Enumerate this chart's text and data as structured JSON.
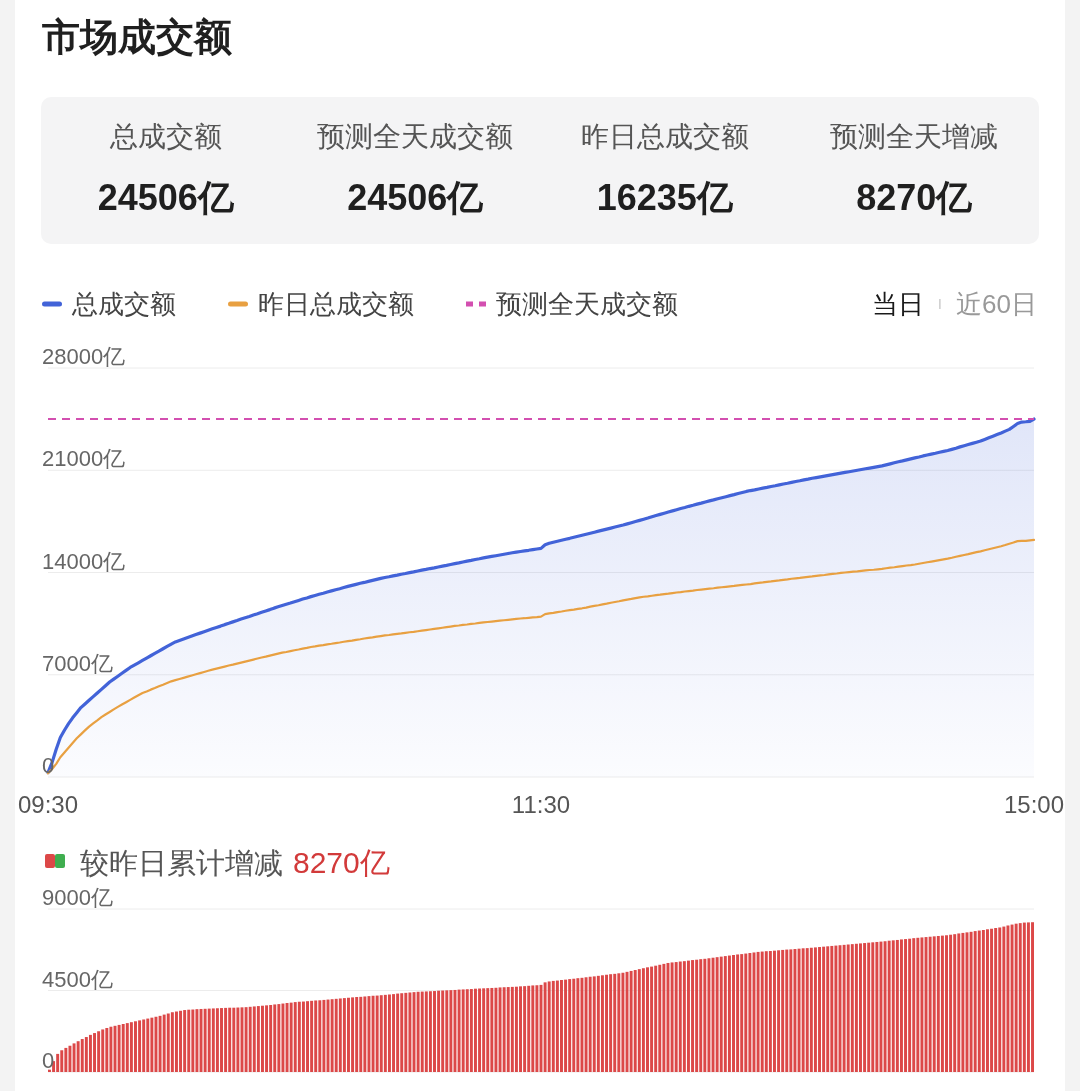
{
  "chart_data": [
    {
      "type": "other",
      "title": "市场成交额",
      "annotations": [
        "总成交额",
        "24506亿",
        "预测全天成交额",
        "24506亿",
        "昨日总成交额",
        "16235亿",
        "预测全天增减",
        "8270亿"
      ]
    },
    {
      "type": "line",
      "legend": "top left",
      "grid": "y",
      "ylim": [
        0,
        28000
      ],
      "yticks": [
        0,
        {
          "value": 7000,
          "label": "7000亿"
        },
        {
          "value": 14000,
          "label": "14000亿"
        },
        {
          "value": 21000,
          "label": "21000亿"
        },
        {
          "value": 28000,
          "label": "28000亿"
        }
      ],
      "annotations": [
        "当日",
        "近60日"
      ],
      "categories": [
        "09:30",
        null,
        null,
        null,
        null,
        null,
        null,
        null,
        null,
        null,
        null,
        null,
        null,
        null,
        null,
        null,
        null,
        null,
        null,
        null,
        null,
        null,
        null,
        null,
        null,
        null,
        null,
        null,
        null,
        null,
        null,
        null,
        null,
        null,
        null,
        null,
        null,
        null,
        null,
        null,
        null,
        null,
        null,
        null,
        null,
        null,
        null,
        null,
        null,
        null,
        null,
        null,
        null,
        null,
        null,
        null,
        null,
        null,
        null,
        null,
        null,
        null,
        null,
        null,
        null,
        null,
        null,
        null,
        null,
        null,
        null,
        null,
        null,
        null,
        null,
        null,
        null,
        null,
        null,
        null,
        null,
        null,
        null,
        null,
        null,
        null,
        null,
        null,
        null,
        null,
        null,
        null,
        null,
        null,
        null,
        null,
        null,
        null,
        null,
        null,
        null,
        null,
        null,
        null,
        null,
        null,
        null,
        null,
        null,
        null,
        null,
        null,
        null,
        null,
        null,
        null,
        null,
        null,
        null,
        null,
        "11:30",
        null,
        null,
        null,
        null,
        null,
        null,
        null,
        null,
        null,
        null,
        null,
        null,
        null,
        null,
        null,
        null,
        null,
        null,
        null,
        null,
        null,
        null,
        null,
        null,
        null,
        null,
        null,
        null,
        null,
        null,
        null,
        null,
        null,
        null,
        null,
        null,
        null,
        null,
        null,
        null,
        null,
        null,
        null,
        null,
        null,
        null,
        null,
        null,
        null,
        null,
        null,
        null,
        null,
        null,
        null,
        null,
        null,
        null,
        null,
        null,
        null,
        null,
        null,
        null,
        null,
        null,
        null,
        null,
        null,
        null,
        null,
        null,
        null,
        null,
        null,
        null,
        null,
        null,
        null,
        null,
        null,
        null,
        null,
        null,
        null,
        null,
        null,
        null,
        null,
        null,
        null,
        null,
        null,
        null,
        null,
        null,
        null,
        null,
        null,
        null,
        null,
        null,
        null,
        null,
        null,
        null,
        null,
        null,
        null,
        null,
        null,
        null,
        null,
        null,
        null,
        null,
        null,
        null,
        null,
        "15:00"
      ],
      "series": [
        {
          "name": "总成交额",
          "type": "area",
          "color": "#4263d8",
          "values": [
            300,
            1000,
            1900,
            2700,
            3200,
            3650,
            4050,
            4400,
            4750,
            5000,
            5250,
            5500,
            5750,
            6000,
            6250,
            6500,
            6700,
            6900,
            7100,
            7300,
            7500,
            7660,
            7820,
            7980,
            8140,
            8300,
            8460,
            8620,
            8780,
            8940,
            9100,
            9250,
            9350,
            9450,
            9550,
            9650,
            9750,
            9850,
            9950,
            10050,
            10150,
            10240,
            10330,
            10430,
            10520,
            10620,
            10710,
            10810,
            10900,
            10990,
            11090,
            11180,
            11280,
            11370,
            11460,
            11560,
            11650,
            11740,
            11830,
            11910,
            12000,
            12090,
            12180,
            12260,
            12350,
            12430,
            12510,
            12580,
            12660,
            12740,
            12820,
            12890,
            12970,
            13050,
            13120,
            13190,
            13260,
            13320,
            13390,
            13460,
            13530,
            13600,
            13660,
            13710,
            13770,
            13820,
            13880,
            13930,
            13990,
            14040,
            14100,
            14160,
            14210,
            14270,
            14320,
            14380,
            14440,
            14490,
            14550,
            14610,
            14660,
            14720,
            14780,
            14830,
            14890,
            14940,
            15000,
            15050,
            15100,
            15150,
            15200,
            15250,
            15300,
            15350,
            15400,
            15440,
            15480,
            15520,
            15570,
            15610,
            15650,
            15900,
            16000,
            16070,
            16140,
            16210,
            16280,
            16340,
            16410,
            16480,
            16550,
            16620,
            16690,
            16760,
            16830,
            16900,
            16970,
            17040,
            17110,
            17180,
            17250,
            17330,
            17410,
            17490,
            17570,
            17650,
            17730,
            17820,
            17900,
            17980,
            18060,
            18140,
            18220,
            18300,
            18380,
            18450,
            18530,
            18600,
            18680,
            18750,
            18830,
            18900,
            18970,
            19050,
            19120,
            19190,
            19260,
            19330,
            19410,
            19480,
            19550,
            19610,
            19660,
            19720,
            19780,
            19830,
            19890,
            19940,
            20000,
            20060,
            20110,
            20170,
            20230,
            20280,
            20340,
            20390,
            20450,
            20500,
            20550,
            20600,
            20650,
            20700,
            20750,
            20800,
            20850,
            20900,
            20950,
            21000,
            21050,
            21100,
            21150,
            21200,
            21250,
            21300,
            21370,
            21440,
            21510,
            21580,
            21640,
            21710,
            21780,
            21850,
            21910,
            21980,
            22040,
            22100,
            22160,
            22230,
            22290,
            22350,
            22430,
            22510,
            22600,
            22680,
            22760,
            22840,
            22920,
            23000,
            23110,
            23220,
            23330,
            23440,
            23550,
            23680,
            23800,
            24000,
            24200,
            24300,
            24320,
            24350,
            24506
          ]
        },
        {
          "name": "昨日总成交额",
          "type": "line",
          "color": "#e8a041",
          "values": [
            250,
            550,
            900,
            1350,
            1680,
            2000,
            2330,
            2650,
            2920,
            3190,
            3450,
            3670,
            3880,
            4100,
            4280,
            4450,
            4630,
            4800,
            4960,
            5120,
            5280,
            5440,
            5600,
            5750,
            5860,
            5980,
            6090,
            6210,
            6320,
            6440,
            6550,
            6630,
            6710,
            6790,
            6870,
            6950,
            7030,
            7110,
            7190,
            7270,
            7350,
            7420,
            7490,
            7560,
            7630,
            7690,
            7760,
            7830,
            7900,
            7970,
            8040,
            8110,
            8180,
            8240,
            8310,
            8380,
            8450,
            8510,
            8560,
            8620,
            8680,
            8730,
            8790,
            8840,
            8900,
            8940,
            8990,
            9030,
            9080,
            9120,
            9170,
            9210,
            9260,
            9300,
            9340,
            9390,
            9430,
            9480,
            9520,
            9560,
            9610,
            9650,
            9690,
            9720,
            9760,
            9800,
            9830,
            9870,
            9910,
            9940,
            9980,
            10020,
            10060,
            10100,
            10140,
            10180,
            10220,
            10260,
            10300,
            10340,
            10370,
            10410,
            10440,
            10480,
            10510,
            10550,
            10580,
            10610,
            10640,
            10670,
            10700,
            10730,
            10760,
            10790,
            10820,
            10850,
            10870,
            10900,
            10930,
            10950,
            10980,
            11150,
            11200,
            11240,
            11290,
            11330,
            11380,
            11420,
            11460,
            11510,
            11550,
            11600,
            11660,
            11710,
            11760,
            11820,
            11870,
            11930,
            11980,
            12030,
            12090,
            12140,
            12190,
            12250,
            12300,
            12340,
            12370,
            12410,
            12450,
            12480,
            12520,
            12550,
            12590,
            12630,
            12660,
            12700,
            12730,
            12760,
            12800,
            12830,
            12860,
            12890,
            12920,
            12960,
            12990,
            13020,
            13050,
            13080,
            13120,
            13150,
            13180,
            13210,
            13250,
            13290,
            13320,
            13360,
            13390,
            13430,
            13460,
            13500,
            13530,
            13570,
            13600,
            13630,
            13670,
            13700,
            13730,
            13770,
            13800,
            13830,
            13870,
            13900,
            13930,
            13970,
            14000,
            14030,
            14060,
            14080,
            14110,
            14140,
            14170,
            14190,
            14220,
            14250,
            14290,
            14330,
            14360,
            14400,
            14440,
            14480,
            14510,
            14550,
            14600,
            14650,
            14700,
            14750,
            14800,
            14850,
            14900,
            14950,
            15010,
            15080,
            15140,
            15200,
            15260,
            15330,
            15390,
            15450,
            15520,
            15590,
            15660,
            15730,
            15800,
            15880,
            15970,
            16050,
            16150,
            16160,
            16170,
            16200,
            16235
          ]
        }
      ],
      "ref_lines": [
        {
          "axis": "y",
          "value": 24506,
          "label": "预测全天成交额",
          "color": "#d34fb0",
          "line_style": "dashed"
        }
      ]
    },
    {
      "type": "bar",
      "title": "较昨日累计增减",
      "annotations": [
        "8270亿"
      ],
      "grid": "y",
      "color": "#dc4848",
      "ylim": [
        0,
        9000
      ],
      "yticks": [
        0,
        {
          "value": 4500,
          "label": "4500亿"
        },
        {
          "value": 9000,
          "label": "9000亿"
        }
      ],
      "categories": [
        null,
        null,
        null,
        null,
        null,
        null,
        null,
        null,
        null,
        null,
        null,
        null,
        null,
        null,
        null,
        null,
        null,
        null,
        null,
        null,
        null,
        null,
        null,
        null,
        null,
        null,
        null,
        null,
        null,
        null,
        null,
        null,
        null,
        null,
        null,
        null,
        null,
        null,
        null,
        null,
        null,
        null,
        null,
        null,
        null,
        null,
        null,
        null,
        null,
        null,
        null,
        null,
        null,
        null,
        null,
        null,
        null,
        null,
        null,
        null,
        null,
        null,
        null,
        null,
        null,
        null,
        null,
        null,
        null,
        null,
        null,
        null,
        null,
        null,
        null,
        null,
        null,
        null,
        null,
        null,
        null,
        null,
        null,
        null,
        null,
        null,
        null,
        null,
        null,
        null,
        null,
        null,
        null,
        null,
        null,
        null,
        null,
        null,
        null,
        null,
        null,
        null,
        null,
        null,
        null,
        null,
        null,
        null,
        null,
        null,
        null,
        null,
        null,
        null,
        null,
        null,
        null,
        null,
        null,
        null,
        null,
        null,
        null,
        null,
        null,
        null,
        null,
        null,
        null,
        null,
        null,
        null,
        null,
        null,
        null,
        null,
        null,
        null,
        null,
        null,
        null,
        null,
        null,
        null,
        null,
        null,
        null,
        null,
        null,
        null,
        null,
        null,
        null,
        null,
        null,
        null,
        null,
        null,
        null,
        null,
        null,
        null,
        null,
        null,
        null,
        null,
        null,
        null,
        null,
        null,
        null,
        null,
        null,
        null,
        null,
        null,
        null,
        null,
        null,
        null,
        null,
        null,
        null,
        null,
        null,
        null,
        null,
        null,
        null,
        null,
        null,
        null,
        null,
        null,
        null,
        null,
        null,
        null,
        null,
        null,
        null,
        null,
        null,
        null,
        null,
        null,
        null,
        null,
        null,
        null,
        null,
        null,
        null,
        null,
        null,
        null,
        null,
        null,
        null,
        null,
        null,
        null,
        null,
        null,
        null,
        null,
        null,
        null,
        null,
        null,
        null,
        null,
        null,
        null,
        null,
        null,
        null,
        null,
        null,
        null,
        null
      ],
      "values": [
        130,
        600,
        1000,
        1200,
        1330,
        1450,
        1580,
        1700,
        1820,
        1930,
        2050,
        2150,
        2250,
        2350,
        2430,
        2500,
        2550,
        2600,
        2650,
        2700,
        2750,
        2800,
        2850,
        2900,
        2950,
        3000,
        3050,
        3100,
        3170,
        3230,
        3300,
        3340,
        3380,
        3420,
        3440,
        3450,
        3470,
        3480,
        3490,
        3500,
        3510,
        3520,
        3530,
        3540,
        3550,
        3550,
        3560,
        3570,
        3580,
        3600,
        3620,
        3640,
        3660,
        3680,
        3700,
        3730,
        3750,
        3780,
        3810,
        3830,
        3860,
        3880,
        3890,
        3910,
        3930,
        3950,
        3960,
        3980,
        4000,
        4020,
        4040,
        4060,
        4080,
        4100,
        4120,
        4140,
        4150,
        4170,
        4190,
        4210,
        4220,
        4240,
        4260,
        4280,
        4300,
        4330,
        4350,
        4370,
        4390,
        4410,
        4430,
        4440,
        4450,
        4460,
        4470,
        4490,
        4500,
        4510,
        4520,
        4530,
        4550,
        4560,
        4570,
        4580,
        4600,
        4610,
        4620,
        4630,
        4640,
        4650,
        4670,
        4680,
        4690,
        4700,
        4710,
        4730,
        4740,
        4760,
        4780,
        4790,
        4810,
        4950,
        5000,
        5030,
        5050,
        5080,
        5100,
        5130,
        5150,
        5180,
        5200,
        5230,
        5260,
        5280,
        5310,
        5340,
        5370,
        5400,
        5420,
        5450,
        5480,
        5530,
        5580,
        5630,
        5680,
        5730,
        5780,
        5820,
        5870,
        5920,
        5970,
        6020,
        6050,
        6070,
        6100,
        6120,
        6150,
        6180,
        6200,
        6230,
        6250,
        6280,
        6310,
        6340,
        6370,
        6400,
        6430,
        6460,
        6490,
        6510,
        6540,
        6570,
        6600,
        6630,
        6650,
        6670,
        6680,
        6700,
        6720,
        6740,
        6760,
        6770,
        6790,
        6810,
        6830,
        6840,
        6860,
        6880,
        6900,
        6920,
        6940,
        6960,
        6980,
        7000,
        7020,
        7040,
        7060,
        7080,
        7100,
        7120,
        7140,
        7160,
        7180,
        7200,
        7220,
        7250,
        7270,
        7290,
        7320,
        7340,
        7360,
        7390,
        7410,
        7430,
        7450,
        7470,
        7490,
        7510,
        7530,
        7550,
        7580,
        7610,
        7650,
        7680,
        7710,
        7740,
        7780,
        7810,
        7840,
        7880,
        7910,
        7950,
        7980,
        8030,
        8090,
        8140,
        8190,
        8220,
        8250,
        8260,
        8270
      ]
    }
  ]
}
